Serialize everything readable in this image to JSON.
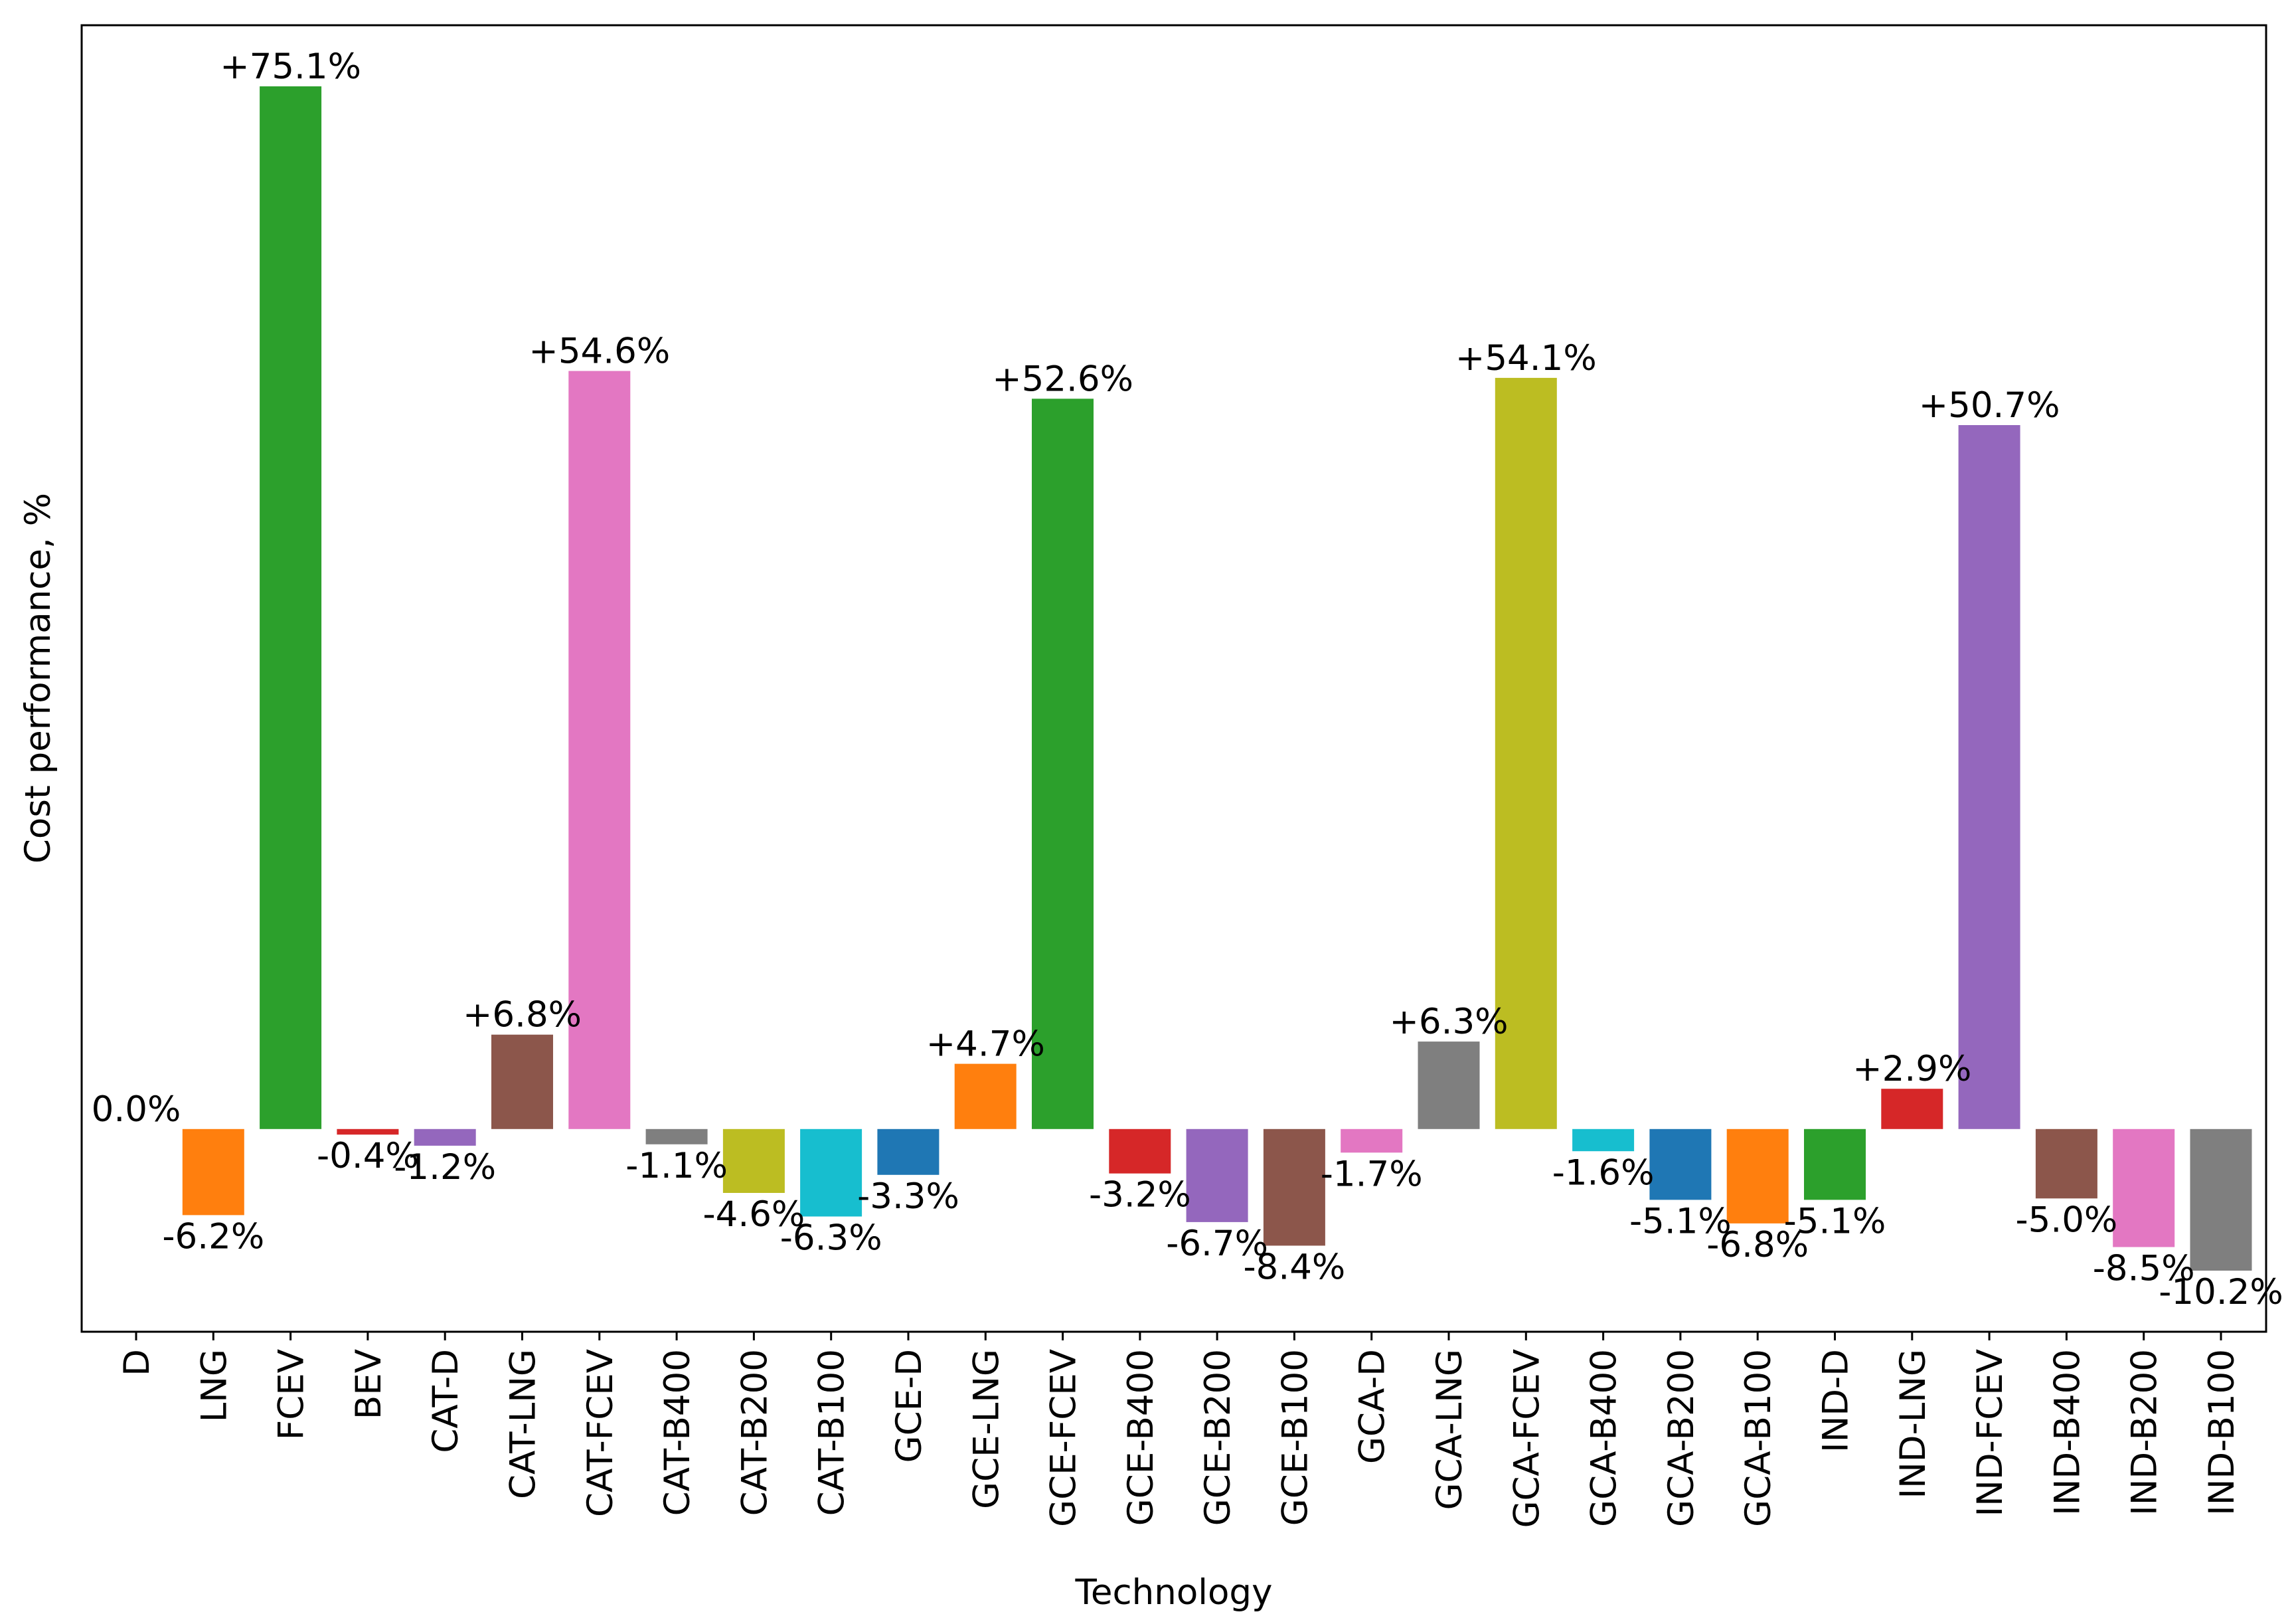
{
  "chart_data": {
    "type": "bar",
    "title": "",
    "xlabel": "Technology",
    "ylabel": "Cost performance, %",
    "categories": [
      "D",
      "LNG",
      "FCEV",
      "BEV",
      "CAT-D",
      "CAT-LNG",
      "CAT-FCEV",
      "CAT-B400",
      "CAT-B200",
      "CAT-B100",
      "GCE-D",
      "GCE-LNG",
      "GCE-FCEV",
      "GCE-B400",
      "GCE-B200",
      "GCE-B100",
      "GCA-D",
      "GCA-LNG",
      "GCA-FCEV",
      "GCA-B400",
      "GCA-B200",
      "GCA-B100",
      "IND-D",
      "IND-LNG",
      "IND-FCEV",
      "IND-B400",
      "IND-B200",
      "IND-B100"
    ],
    "values": [
      0.0,
      -6.2,
      75.1,
      -0.4,
      -1.2,
      6.8,
      54.6,
      -1.1,
      -4.6,
      -6.3,
      -3.3,
      4.7,
      52.6,
      -3.2,
      -6.7,
      -8.4,
      -1.7,
      6.3,
      54.1,
      -1.6,
      -5.1,
      -6.8,
      -5.1,
      2.9,
      50.7,
      -5.0,
      -8.5,
      -10.2
    ],
    "labels": [
      "0.0%",
      "-6.2%",
      "+75.1%",
      "-0.4%",
      "-1.2%",
      "+6.8%",
      "+54.6%",
      "-1.1%",
      "-4.6%",
      "-6.3%",
      "-3.3%",
      "+4.7%",
      "+52.6%",
      "-3.2%",
      "-6.7%",
      "-8.4%",
      "-1.7%",
      "+6.3%",
      "+54.1%",
      "-1.6%",
      "-5.1%",
      "-6.8%",
      "-5.1%",
      "+2.9%",
      "+50.7%",
      "-5.0%",
      "-8.5%",
      "-10.2%"
    ],
    "colors": [
      "#1f77b4",
      "#ff7f0e",
      "#2ca02c",
      "#d62728",
      "#9467bd",
      "#8c564b",
      "#e377c2",
      "#7f7f7f",
      "#bcbd22",
      "#17becf",
      "#1f77b4",
      "#ff7f0e",
      "#2ca02c",
      "#d62728",
      "#9467bd",
      "#8c564b",
      "#e377c2",
      "#7f7f7f",
      "#bcbd22",
      "#17becf",
      "#1f77b4",
      "#ff7f0e",
      "#2ca02c",
      "#d62728",
      "#9467bd",
      "#8c564b",
      "#e377c2",
      "#7f7f7f"
    ],
    "ylim": [
      -14.6,
      79.5
    ],
    "grid": false,
    "legend": "none"
  }
}
